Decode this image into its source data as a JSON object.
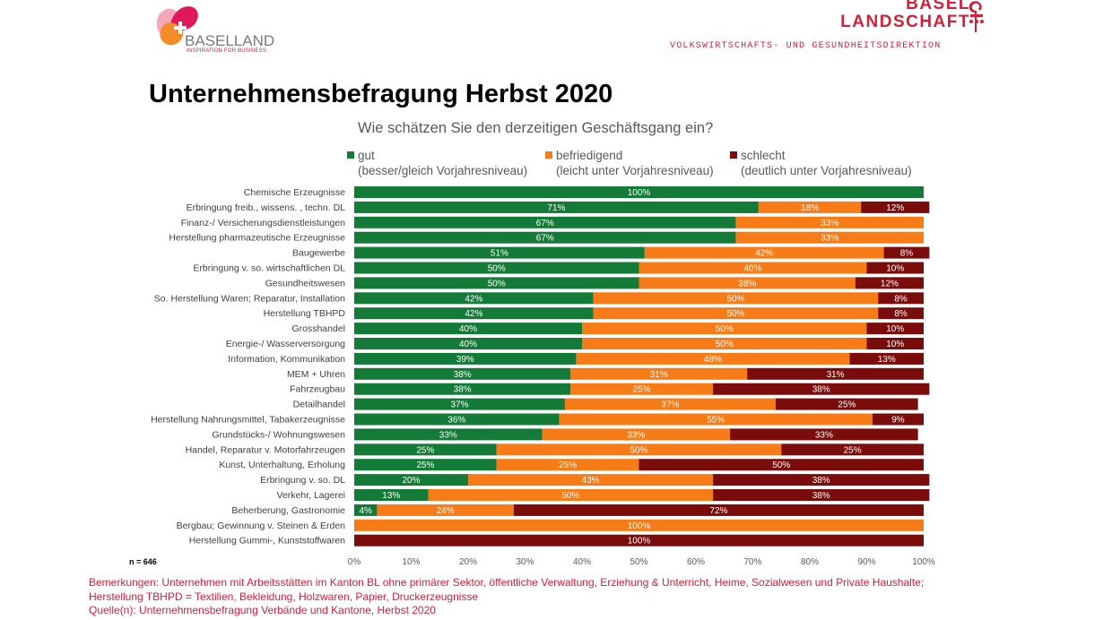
{
  "header": {
    "left_logo": {
      "brand": "BASELLAND",
      "tagline": "INSPIRATION FOR BUSINESS"
    },
    "right_logo": {
      "line1": "BASEL",
      "line2": "LANDSCHAFT"
    },
    "department": "VOLKSWIRTSCHAFTS- UND GESUNDHEITSDIREKTION"
  },
  "page_title": "Unternehmensbefragung Herbst 2020",
  "chart_data": {
    "type": "bar",
    "orientation": "horizontal",
    "stacked": true,
    "title": "Wie schätzen Sie den derzeitigen Geschäftsgang ein?",
    "xlim": [
      0,
      100
    ],
    "x_ticks": [
      "0%",
      "10%",
      "20%",
      "30%",
      "40%",
      "50%",
      "60%",
      "70%",
      "80%",
      "90%",
      "100%"
    ],
    "grid": false,
    "legend_position": "top",
    "categories": [
      "Chemische Erzeugnisse",
      "Erbringung freib., wissens. , techn. DL",
      "Finanz-/ Versicherungsdienstleistungen",
      "Herstellung pharmazeutische Erzeugnisse",
      "Baugewerbe",
      "Erbringung  v. so. wirtschaftlichen DL",
      "Gesundheitswesen",
      "So. Herstellung Waren; Reparatur, Installation",
      "Herstellung TBHPD",
      "Grosshandel",
      "Energie-/ Wasserversorgung",
      "Information, Kommunikation",
      "MEM + Uhren",
      "Fahrzeugbau",
      "Detailhandel",
      "Herstellung Nahrungsmittel, Tabakerzeugnisse",
      "Grundstücks-/ Wohnungswesen",
      "Handel, Reparatur v. Motorfahrzeugen",
      "Kunst, Unterhaltung, Erholung",
      "Erbringung v. so. DL",
      "Verkehr, Lagerei",
      "Beherberung, Gastronomie",
      "Bergbau; Gewinnung v. Steinen & Erden",
      "Herstellung Gummi-, Kunststoffwaren"
    ],
    "series": [
      {
        "name": "gut",
        "description": "(besser/gleich Vorjahresniveau)",
        "color": "#147a38",
        "values": [
          100,
          71,
          67,
          67,
          51,
          50,
          50,
          42,
          42,
          40,
          40,
          39,
          38,
          38,
          37,
          36,
          33,
          25,
          25,
          20,
          13,
          4,
          0,
          0
        ]
      },
      {
        "name": "befriedigend",
        "description": "(leicht unter Vorjahresniveau)",
        "color": "#f77b16",
        "values": [
          0,
          18,
          33,
          33,
          42,
          40,
          38,
          50,
          50,
          50,
          50,
          48,
          31,
          25,
          37,
          55,
          33,
          50,
          25,
          43,
          50,
          24,
          100,
          0
        ]
      },
      {
        "name": "schlecht",
        "description": "(deutlich unter Vorjahresniveau)",
        "color": "#7b0c0c",
        "values": [
          0,
          12,
          0,
          0,
          8,
          10,
          12,
          8,
          8,
          10,
          10,
          13,
          31,
          38,
          25,
          9,
          33,
          25,
          50,
          38,
          38,
          72,
          0,
          100
        ]
      }
    ]
  },
  "sample_size": "n = 646",
  "notes": [
    "Bemerkungen: Unternehmen mit Arbeitsstätten im Kanton BL ohne primärer Sektor, öffentliche Verwaltung, Erziehung & Unterricht, Heime, Sozialwesen und Private Haushalte;",
    "Herstellung TBHPD = Textilien, Bekleidung, Holzwaren, Papier, Druckerzeugnisse",
    "Quelle(n): Unternehmensbefragung Verbände und Kantone, Herbst 2020"
  ],
  "colors": {
    "accent": "#d0213a"
  }
}
